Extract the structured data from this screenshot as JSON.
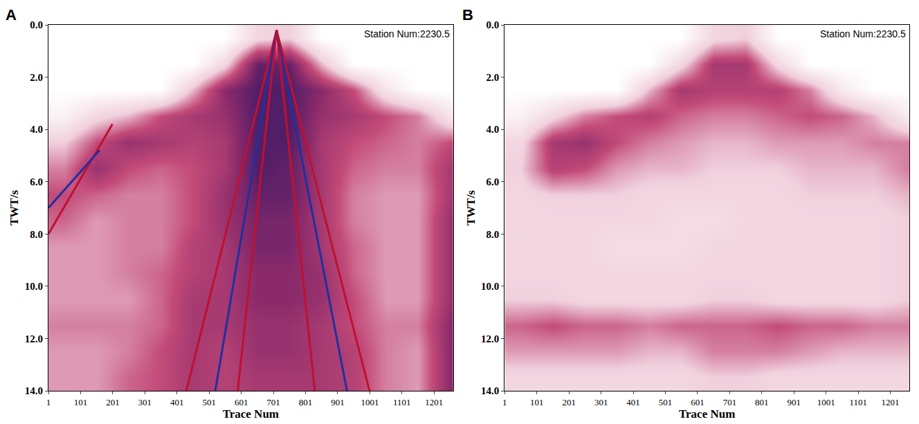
{
  "chart_data": [
    {
      "type": "heatmap",
      "label": "A",
      "annotation": "Station Num:2230.5",
      "x_label": "Trace Num",
      "y_label": "TWT/s",
      "xlim": [
        1,
        1260
      ],
      "ylim": [
        14,
        0
      ],
      "xticks": [
        1,
        101,
        201,
        301,
        401,
        501,
        601,
        701,
        801,
        901,
        1001,
        1101,
        1201
      ],
      "yticks": [
        {
          "value": 0,
          "label": "0.0"
        },
        {
          "value": 2,
          "label": "2.0"
        },
        {
          "value": 4,
          "label": "4.0"
        },
        {
          "value": 6,
          "label": "6.0"
        },
        {
          "value": 8,
          "label": "8.0"
        },
        {
          "value": 10,
          "label": "10.0"
        },
        {
          "value": 12,
          "label": "12.0"
        },
        {
          "value": 14,
          "label": "14.0"
        }
      ],
      "x": [
        51,
        151,
        251,
        351,
        451,
        551,
        651,
        751,
        851,
        951,
        1051,
        1151,
        1251
      ],
      "y": [
        0.5,
        1.5,
        2.5,
        3.5,
        4.5,
        5.5,
        6.5,
        7.5,
        8.5,
        9.5,
        10.5,
        11.5,
        12.5,
        13.5
      ],
      "zlim": [
        0,
        1
      ],
      "z": [
        [
          0,
          0,
          0,
          0,
          0,
          0,
          0.3,
          0.35,
          0,
          0,
          0,
          0,
          0
        ],
        [
          0,
          0,
          0,
          0,
          0,
          0.3,
          0.9,
          0.9,
          0.4,
          0,
          0,
          0,
          0
        ],
        [
          0,
          0,
          0,
          0,
          0.4,
          0.8,
          0.95,
          0.95,
          0.8,
          0.6,
          0.2,
          0,
          0
        ],
        [
          0.1,
          0.3,
          0.4,
          0.6,
          0.7,
          0.75,
          0.95,
          0.95,
          0.75,
          0.7,
          0.6,
          0.5,
          0.2
        ],
        [
          0.35,
          0.6,
          0.75,
          0.7,
          0.65,
          0.7,
          0.95,
          0.95,
          0.7,
          0.6,
          0.55,
          0.5,
          0.6
        ],
        [
          0.5,
          0.75,
          0.6,
          0.55,
          0.6,
          0.7,
          0.95,
          0.9,
          0.7,
          0.55,
          0.5,
          0.5,
          0.7
        ],
        [
          0.6,
          0.55,
          0.5,
          0.5,
          0.6,
          0.75,
          0.9,
          0.9,
          0.7,
          0.5,
          0.45,
          0.45,
          0.7
        ],
        [
          0.55,
          0.45,
          0.5,
          0.5,
          0.6,
          0.75,
          0.85,
          0.85,
          0.7,
          0.5,
          0.45,
          0.45,
          0.75
        ],
        [
          0.45,
          0.45,
          0.5,
          0.5,
          0.65,
          0.7,
          0.85,
          0.85,
          0.7,
          0.55,
          0.45,
          0.45,
          0.75
        ],
        [
          0.45,
          0.45,
          0.5,
          0.55,
          0.65,
          0.7,
          0.8,
          0.8,
          0.75,
          0.55,
          0.45,
          0.45,
          0.75
        ],
        [
          0.45,
          0.45,
          0.45,
          0.55,
          0.7,
          0.7,
          0.8,
          0.8,
          0.75,
          0.6,
          0.45,
          0.45,
          0.75
        ],
        [
          0.5,
          0.5,
          0.5,
          0.55,
          0.7,
          0.7,
          0.75,
          0.75,
          0.7,
          0.6,
          0.5,
          0.5,
          0.8
        ],
        [
          0.45,
          0.45,
          0.5,
          0.6,
          0.7,
          0.65,
          0.75,
          0.75,
          0.7,
          0.65,
          0.5,
          0.45,
          0.8
        ],
        [
          0.45,
          0.45,
          0.55,
          0.6,
          0.7,
          0.65,
          0.7,
          0.7,
          0.7,
          0.65,
          0.5,
          0.45,
          0.8
        ]
      ],
      "lines": [
        {
          "x": [
            711,
            430
          ],
          "y": [
            0.2,
            14
          ],
          "color": "#c01030"
        },
        {
          "x": [
            711,
            520
          ],
          "y": [
            0.2,
            14
          ],
          "color": "#2030a0"
        },
        {
          "x": [
            711,
            590
          ],
          "y": [
            0.2,
            14
          ],
          "color": "#c01030"
        },
        {
          "x": [
            711,
            830
          ],
          "y": [
            0.2,
            14
          ],
          "color": "#c01030"
        },
        {
          "x": [
            711,
            930
          ],
          "y": [
            0.2,
            14
          ],
          "color": "#2030a0"
        },
        {
          "x": [
            711,
            1000
          ],
          "y": [
            0.2,
            14
          ],
          "color": "#c01030"
        },
        {
          "x": [
            200,
            1
          ],
          "y": [
            3.8,
            8.0
          ],
          "color": "#c01030"
        },
        {
          "x": [
            160,
            1
          ],
          "y": [
            4.8,
            7.0
          ],
          "color": "#2030a0"
        }
      ]
    },
    {
      "type": "heatmap",
      "label": "B",
      "annotation": "Station Num:2230.5",
      "x_label": "Trace Num",
      "y_label": "TWT/s",
      "xlim": [
        1,
        1260
      ],
      "ylim": [
        14,
        0
      ],
      "xticks": [
        1,
        101,
        201,
        301,
        401,
        501,
        601,
        701,
        801,
        901,
        1001,
        1101,
        1201
      ],
      "yticks": [
        {
          "value": 0,
          "label": "0.0"
        },
        {
          "value": 2,
          "label": "2.0"
        },
        {
          "value": 4,
          "label": "4.0"
        },
        {
          "value": 6,
          "label": "6.0"
        },
        {
          "value": 8,
          "label": "8.0"
        },
        {
          "value": 10,
          "label": "10.0"
        },
        {
          "value": 12,
          "label": "12.0"
        },
        {
          "value": 14,
          "label": "14.0"
        }
      ],
      "x": [
        51,
        151,
        251,
        351,
        451,
        551,
        651,
        751,
        851,
        951,
        1051,
        1151,
        1251
      ],
      "y": [
        0.5,
        1.5,
        2.5,
        3.5,
        4.5,
        5.5,
        6.5,
        7.5,
        8.5,
        9.5,
        10.5,
        11.5,
        12.5,
        13.5
      ],
      "zlim": [
        0,
        1
      ],
      "z": [
        [
          0,
          0,
          0,
          0,
          0,
          0,
          0.3,
          0.35,
          0,
          0,
          0,
          0,
          0
        ],
        [
          0,
          0,
          0,
          0,
          0,
          0.3,
          0.7,
          0.7,
          0.3,
          0,
          0,
          0,
          0
        ],
        [
          0,
          0,
          0,
          0,
          0.4,
          0.7,
          0.65,
          0.65,
          0.65,
          0.5,
          0.15,
          0,
          0
        ],
        [
          0.1,
          0.3,
          0.5,
          0.6,
          0.65,
          0.55,
          0.5,
          0.5,
          0.55,
          0.6,
          0.55,
          0.4,
          0.15
        ],
        [
          0.3,
          0.7,
          0.75,
          0.6,
          0.5,
          0.45,
          0.4,
          0.4,
          0.45,
          0.45,
          0.45,
          0.5,
          0.5
        ],
        [
          0.35,
          0.65,
          0.6,
          0.45,
          0.4,
          0.4,
          0.35,
          0.35,
          0.35,
          0.4,
          0.4,
          0.4,
          0.5
        ],
        [
          0.3,
          0.35,
          0.35,
          0.35,
          0.3,
          0.3,
          0.3,
          0.3,
          0.3,
          0.35,
          0.35,
          0.35,
          0.4
        ],
        [
          0.3,
          0.3,
          0.3,
          0.3,
          0.3,
          0.25,
          0.25,
          0.3,
          0.3,
          0.3,
          0.3,
          0.3,
          0.35
        ],
        [
          0.3,
          0.3,
          0.3,
          0.25,
          0.25,
          0.25,
          0.3,
          0.3,
          0.3,
          0.3,
          0.3,
          0.3,
          0.35
        ],
        [
          0.3,
          0.3,
          0.3,
          0.3,
          0.3,
          0.3,
          0.3,
          0.3,
          0.3,
          0.3,
          0.3,
          0.3,
          0.35
        ],
        [
          0.35,
          0.35,
          0.3,
          0.3,
          0.3,
          0.3,
          0.35,
          0.35,
          0.3,
          0.3,
          0.3,
          0.3,
          0.35
        ],
        [
          0.55,
          0.6,
          0.55,
          0.55,
          0.5,
          0.55,
          0.55,
          0.55,
          0.6,
          0.55,
          0.55,
          0.5,
          0.5
        ],
        [
          0.45,
          0.45,
          0.45,
          0.45,
          0.4,
          0.4,
          0.5,
          0.5,
          0.5,
          0.45,
          0.4,
          0.4,
          0.4
        ],
        [
          0.3,
          0.3,
          0.3,
          0.3,
          0.3,
          0.3,
          0.35,
          0.35,
          0.3,
          0.3,
          0.3,
          0.3,
          0.3
        ]
      ]
    }
  ]
}
